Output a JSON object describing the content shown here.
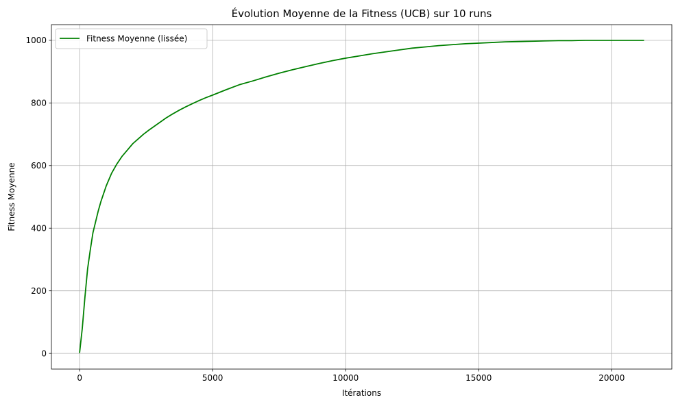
{
  "chart_data": {
    "type": "line",
    "title": "Évolution Moyenne de la Fitness (UCB) sur 10 runs",
    "xlabel": "Itérations",
    "ylabel": "Fitness Moyenne",
    "xlim": [
      -1060,
      22260
    ],
    "ylim": [
      -50,
      1050
    ],
    "xticks": [
      0,
      5000,
      10000,
      15000,
      20000
    ],
    "xtick_labels": [
      "0",
      "5000",
      "10000",
      "15000",
      "20000"
    ],
    "yticks": [
      0,
      200,
      400,
      600,
      800,
      1000
    ],
    "ytick_labels": [
      "0",
      "200",
      "400",
      "600",
      "800",
      "1000"
    ],
    "grid": true,
    "legend_position": "top-left",
    "series": [
      {
        "name": "Fitness Moyenne (lissée)",
        "color": "#008000",
        "x": [
          0,
          100,
          200,
          300,
          400,
          500,
          600,
          700,
          800,
          900,
          1000,
          1200,
          1400,
          1600,
          1800,
          2000,
          2200,
          2400,
          2600,
          2800,
          3000,
          3250,
          3500,
          3750,
          4000,
          4250,
          4500,
          4750,
          5000,
          5500,
          6000,
          6500,
          7000,
          7500,
          8000,
          8500,
          9000,
          9500,
          10000,
          10500,
          11000,
          11500,
          12000,
          12500,
          13000,
          13500,
          14000,
          14500,
          15000,
          15500,
          16000,
          16500,
          17000,
          17500,
          18000,
          18500,
          19000,
          19500,
          20000,
          20500,
          21000,
          21200
        ],
        "values": [
          3,
          80,
          180,
          270,
          330,
          385,
          420,
          455,
          485,
          510,
          535,
          575,
          605,
          630,
          650,
          670,
          685,
          700,
          713,
          725,
          737,
          752,
          765,
          777,
          788,
          798,
          808,
          817,
          825,
          842,
          858,
          870,
          883,
          895,
          906,
          916,
          926,
          935,
          943,
          950,
          957,
          963,
          969,
          975,
          979,
          983,
          986,
          989,
          991,
          993,
          995,
          996,
          997,
          998,
          999,
          999,
          1000,
          1000,
          1000,
          1000,
          1000,
          1000
        ]
      }
    ]
  }
}
